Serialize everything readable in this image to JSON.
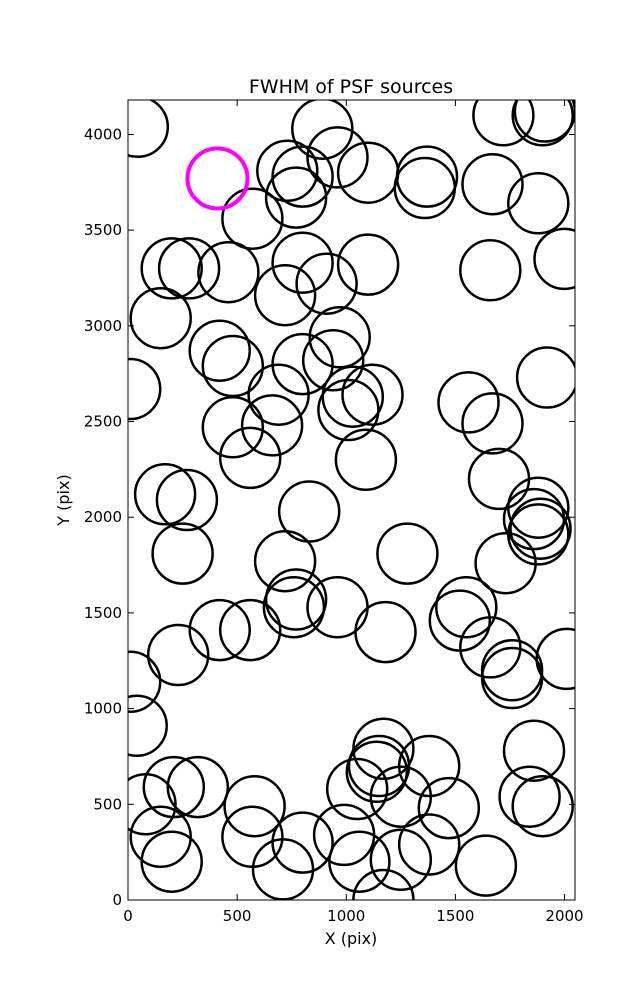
{
  "chart_data": {
    "type": "scatter",
    "title": "FWHM of PSF sources",
    "xlabel": "X (pix)",
    "ylabel": "Y (pix)",
    "xlim": [
      0,
      2048
    ],
    "ylim": [
      0,
      4180
    ],
    "xticks": [
      0,
      500,
      1000,
      1500,
      2000
    ],
    "yticks": [
      0,
      500,
      1000,
      1500,
      2000,
      2500,
      3000,
      3500,
      4000
    ],
    "grid": false,
    "marker": "open-circle",
    "colors": {
      "sources": "#000000",
      "highlight": "#ff00ff"
    },
    "series": [
      {
        "role": "sources",
        "points": [
          [
            45,
            4040
          ],
          [
            730,
            3810
          ],
          [
            800,
            3780
          ],
          [
            890,
            4030
          ],
          [
            960,
            3880
          ],
          [
            1100,
            3800
          ],
          [
            1370,
            3780
          ],
          [
            1360,
            3720
          ],
          [
            1670,
            3740
          ],
          [
            1720,
            4100
          ],
          [
            1900,
            4100
          ],
          [
            1910,
            4120
          ],
          [
            1880,
            3640
          ],
          [
            570,
            3560
          ],
          [
            770,
            3670
          ],
          [
            200,
            3300
          ],
          [
            280,
            3300
          ],
          [
            460,
            3280
          ],
          [
            800,
            3330
          ],
          [
            910,
            3220
          ],
          [
            1100,
            3320
          ],
          [
            1660,
            3290
          ],
          [
            2000,
            3350
          ],
          [
            150,
            3040
          ],
          [
            720,
            3160
          ],
          [
            420,
            2870
          ],
          [
            480,
            2790
          ],
          [
            800,
            2800
          ],
          [
            940,
            2820
          ],
          [
            970,
            2940
          ],
          [
            10,
            2670
          ],
          [
            690,
            2640
          ],
          [
            1030,
            2630
          ],
          [
            1120,
            2640
          ],
          [
            1560,
            2600
          ],
          [
            1920,
            2730
          ],
          [
            480,
            2470
          ],
          [
            660,
            2480
          ],
          [
            1010,
            2560
          ],
          [
            1670,
            2490
          ],
          [
            560,
            2310
          ],
          [
            1090,
            2300
          ],
          [
            1700,
            2200
          ],
          [
            170,
            2120
          ],
          [
            270,
            2090
          ],
          [
            830,
            2030
          ],
          [
            1880,
            2050
          ],
          [
            1860,
            1990
          ],
          [
            1880,
            1910
          ],
          [
            1890,
            1940
          ],
          [
            250,
            1810
          ],
          [
            720,
            1770
          ],
          [
            1280,
            1810
          ],
          [
            1730,
            1760
          ],
          [
            760,
            1530
          ],
          [
            770,
            1570
          ],
          [
            960,
            1530
          ],
          [
            1550,
            1530
          ],
          [
            1520,
            1460
          ],
          [
            420,
            1410
          ],
          [
            560,
            1410
          ],
          [
            1180,
            1400
          ],
          [
            1660,
            1320
          ],
          [
            230,
            1280
          ],
          [
            1760,
            1200
          ],
          [
            1760,
            1160
          ],
          [
            2010,
            1260
          ],
          [
            10,
            1140
          ],
          [
            40,
            910
          ],
          [
            1170,
            790
          ],
          [
            1380,
            700
          ],
          [
            1150,
            700
          ],
          [
            1140,
            670
          ],
          [
            1860,
            780
          ],
          [
            80,
            500
          ],
          [
            210,
            590
          ],
          [
            320,
            590
          ],
          [
            580,
            490
          ],
          [
            1050,
            580
          ],
          [
            1250,
            540
          ],
          [
            1470,
            480
          ],
          [
            1840,
            540
          ],
          [
            1900,
            490
          ],
          [
            150,
            330
          ],
          [
            200,
            200
          ],
          [
            570,
            330
          ],
          [
            800,
            300
          ],
          [
            990,
            340
          ],
          [
            1060,
            200
          ],
          [
            1250,
            210
          ],
          [
            1380,
            290
          ],
          [
            1640,
            180
          ],
          [
            710,
            160
          ],
          [
            1170,
            0
          ]
        ]
      },
      {
        "role": "highlight",
        "points": [
          [
            410,
            3770
          ]
        ]
      }
    ]
  }
}
